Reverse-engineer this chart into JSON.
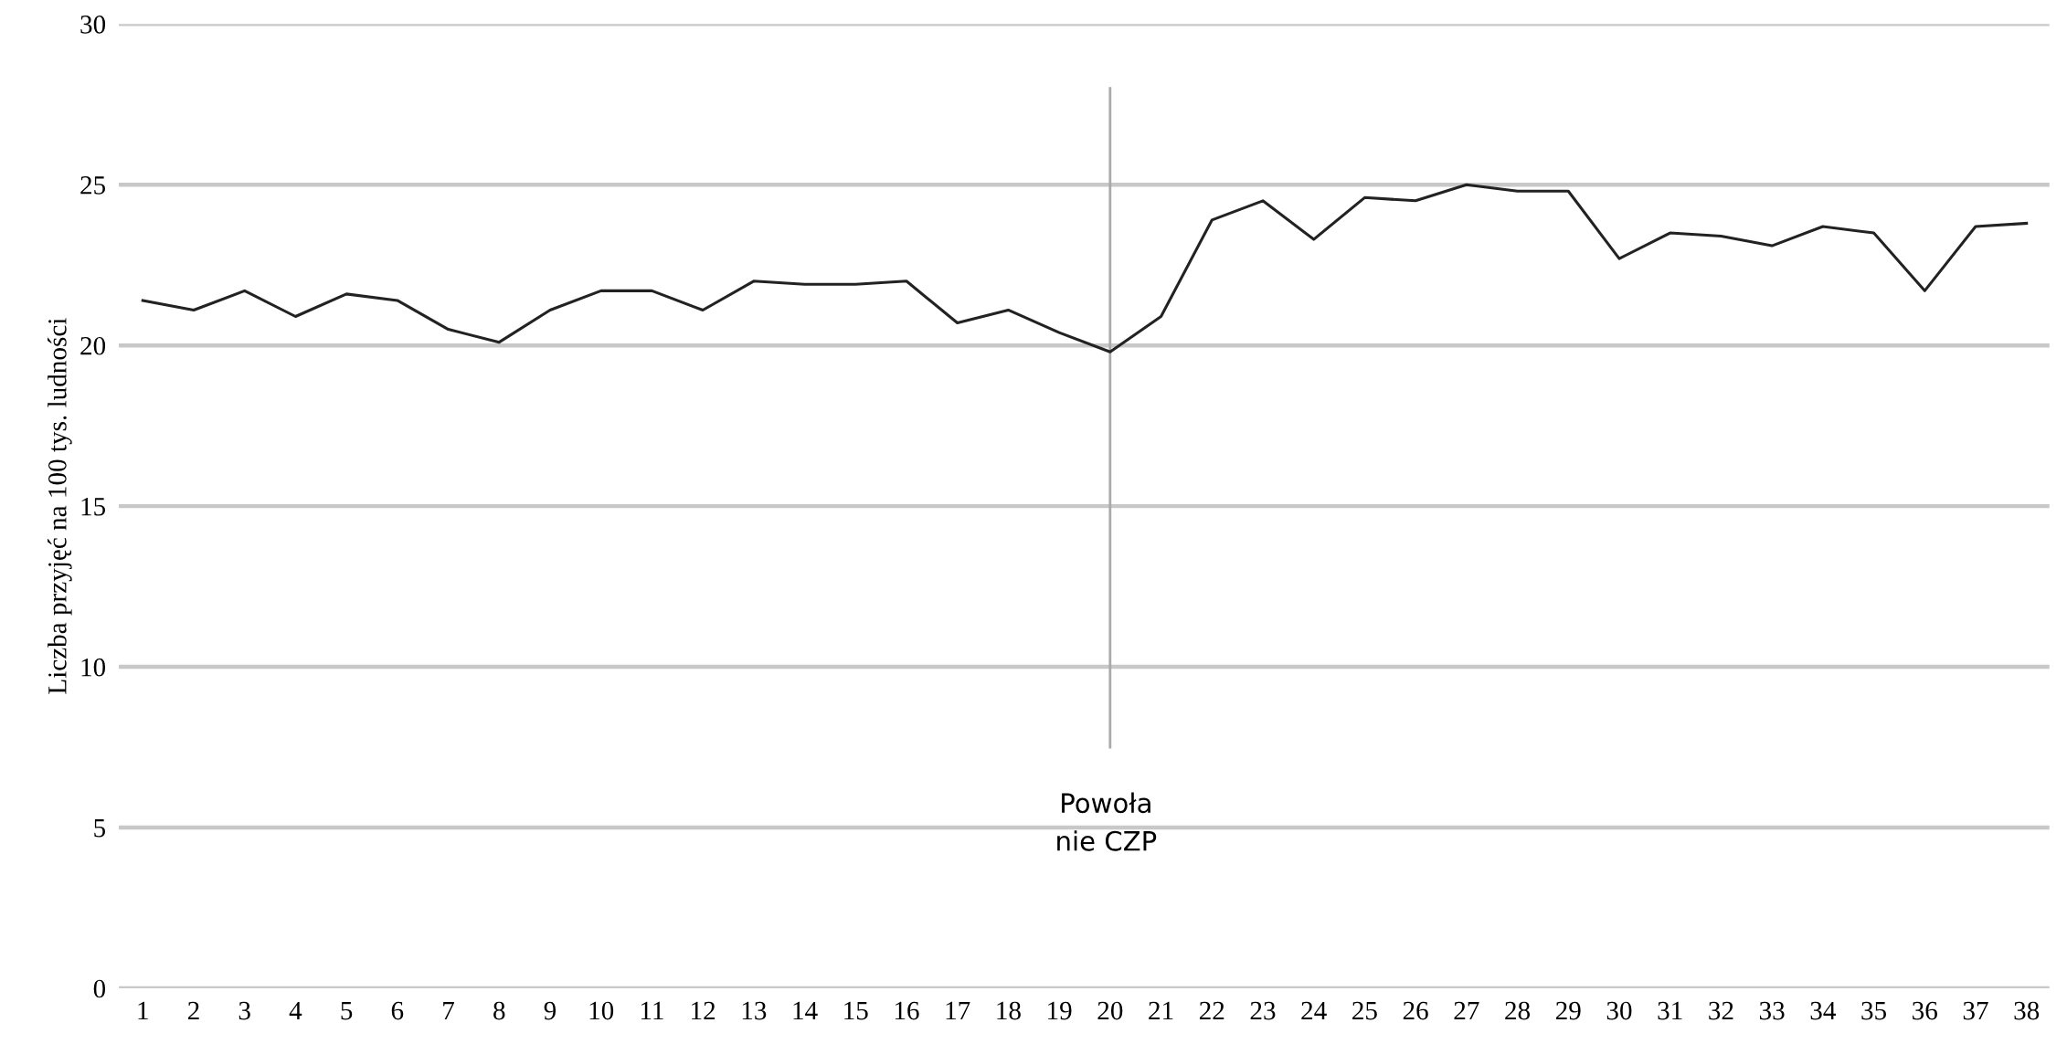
{
  "chart_data": {
    "type": "line",
    "ylabel": "Liczba przyjęć na 100 tys. ludności",
    "categories": [
      "1",
      "2",
      "3",
      "4",
      "5",
      "6",
      "7",
      "8",
      "9",
      "10",
      "11",
      "12",
      "13",
      "14",
      "15",
      "16",
      "17",
      "18",
      "19",
      "20",
      "21",
      "22",
      "23",
      "24",
      "25",
      "26",
      "27",
      "28",
      "29",
      "30",
      "31",
      "32",
      "33",
      "34",
      "35",
      "36",
      "37",
      "38"
    ],
    "series": [
      {
        "color": "#222222",
        "values": [
          21.4,
          21.1,
          21.7,
          20.9,
          21.6,
          21.4,
          20.5,
          20.1,
          21.1,
          21.7,
          21.7,
          21.1,
          22.0,
          21.9,
          21.9,
          22.0,
          20.7,
          21.1,
          20.4,
          19.8,
          20.9,
          23.9,
          24.5,
          23.3,
          24.6,
          24.5,
          25.0,
          24.8,
          24.8,
          22.7,
          23.5,
          23.4,
          23.1,
          23.7,
          23.5,
          21.7,
          23.7,
          23.8
        ]
      }
    ],
    "ylim": [
      0,
      30
    ],
    "yticks": [
      0,
      5,
      10,
      15,
      20,
      25,
      30
    ],
    "grid": "y",
    "marker": "none",
    "line_style": "solid",
    "ref_lines": [
      {
        "axis": "x",
        "value": "20",
        "label": "Powoła\nnie CZP",
        "color": "#aaaaaa"
      }
    ]
  }
}
